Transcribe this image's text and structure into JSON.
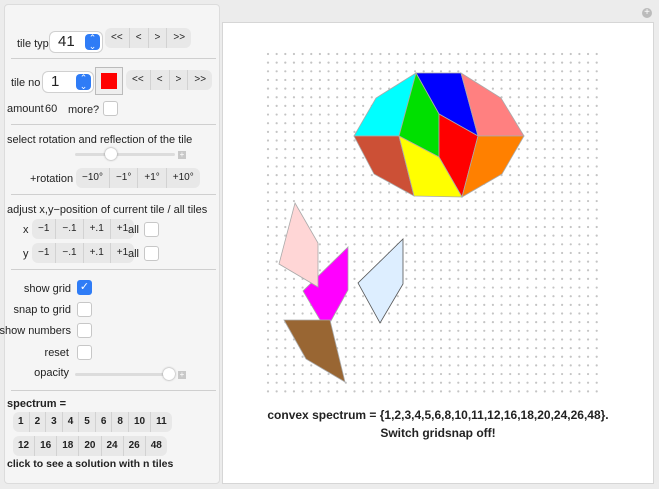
{
  "tile_type": {
    "label": "tile type",
    "value": "41",
    "nav": [
      "<<",
      "<",
      ">",
      ">>"
    ]
  },
  "tile_no": {
    "label": "tile no",
    "value": "1",
    "color": "#ff0000",
    "nav": [
      "<<",
      "<",
      ">",
      ">>"
    ]
  },
  "amount": {
    "label": "amount",
    "value": "60",
    "more_label": "more?",
    "more_checked": false
  },
  "rotation": {
    "heading": "select rotation and reflection of the tile",
    "slider_value": 0.5,
    "label": "+rotation",
    "buttons": [
      "−10°",
      "−1°",
      "+1°",
      "+10°"
    ]
  },
  "position": {
    "heading": "adjust x,y−position of current tile / all tiles",
    "x_label": "x",
    "y_label": "y",
    "buttons": [
      "−1",
      "−.1",
      "+.1",
      "+1"
    ],
    "all_label": "all"
  },
  "options": {
    "show_grid": "show grid",
    "show_grid_checked": true,
    "snap": "snap to grid",
    "numbers": "show numbers",
    "reset": "reset",
    "opacity": "opacity",
    "opacity_value": 1.0
  },
  "spectrum": {
    "label": "spectrum =",
    "row1": [
      "1",
      "2",
      "3",
      "4",
      "5",
      "6",
      "8",
      "10",
      "11"
    ],
    "row2": [
      "12",
      "16",
      "18",
      "20",
      "24",
      "26",
      "48"
    ],
    "hint": "click to see a solution with n tiles"
  },
  "canvas": {
    "line1": "convex spectrum = {1,2,3,4,5,6,8,10,11,12,16,18,20,24,26,48}.",
    "line2": "Switch gridsnap off!",
    "tile_colors": [
      "#00ffff",
      "#0000ff",
      "#ff8080",
      "#00e000",
      "#ff0000",
      "#cc5036",
      "#ffff00",
      "#ff8000",
      "#ffd6d6",
      "#ff00ff",
      "#ddeeff",
      "#996633"
    ]
  }
}
